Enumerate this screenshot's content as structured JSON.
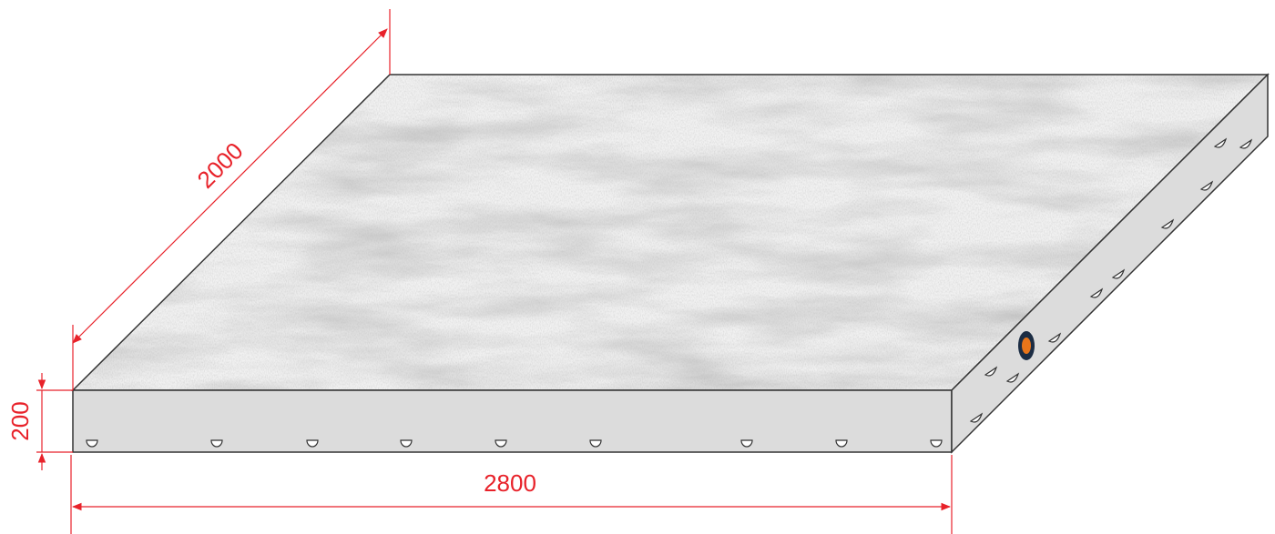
{
  "diagram": {
    "dimensions": {
      "depth": "2000",
      "width": "2800",
      "height": "200"
    },
    "colors": {
      "dimension_line": "#e8222a",
      "slab_edge": "#333333",
      "side_face": "#dcdcdc",
      "insert_fill": "#ffffff",
      "dowel_outer": "#1c2d44",
      "dowel_inner": "#e8751a"
    }
  }
}
